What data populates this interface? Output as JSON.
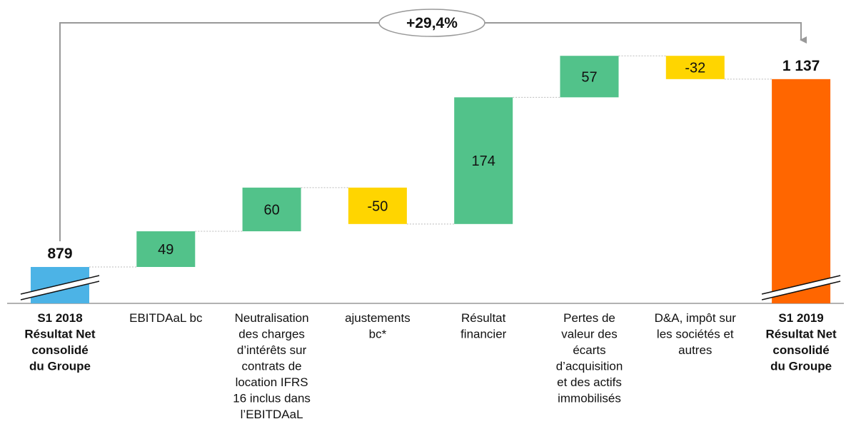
{
  "chart_data": {
    "type": "waterfall",
    "annotation": "+29,4%",
    "categories": [
      [
        "S1 2018",
        "Résultat Net",
        "consolidé",
        "du Groupe"
      ],
      [
        "EBITDAaL bc"
      ],
      [
        "Neutralisation",
        "des charges",
        "d’intérêts sur",
        "contrats de",
        "location IFRS",
        "16 inclus dans",
        "l’EBITDAaL"
      ],
      [
        "ajustements",
        "bc*"
      ],
      [
        "Résultat",
        "financier"
      ],
      [
        "Pertes de",
        "valeur des",
        "écarts",
        "d’acquisition",
        "et des actifs",
        "immobilisés"
      ],
      [
        "D&A, impôt sur",
        "les sociétés et",
        "autres"
      ],
      [
        "S1 2019",
        "Résultat Net",
        "consolidé",
        "du Groupe"
      ]
    ],
    "values": [
      879,
      49,
      60,
      -50,
      174,
      57,
      -32,
      1137
    ],
    "value_labels": [
      "879",
      "49",
      "60",
      "-50",
      "174",
      "57",
      "-32",
      "1 137"
    ],
    "colors": [
      "#4cb3e6",
      "#52c28a",
      "#52c28a",
      "#ffd500",
      "#52c28a",
      "#52c28a",
      "#ffd500",
      "#ff6600"
    ]
  }
}
